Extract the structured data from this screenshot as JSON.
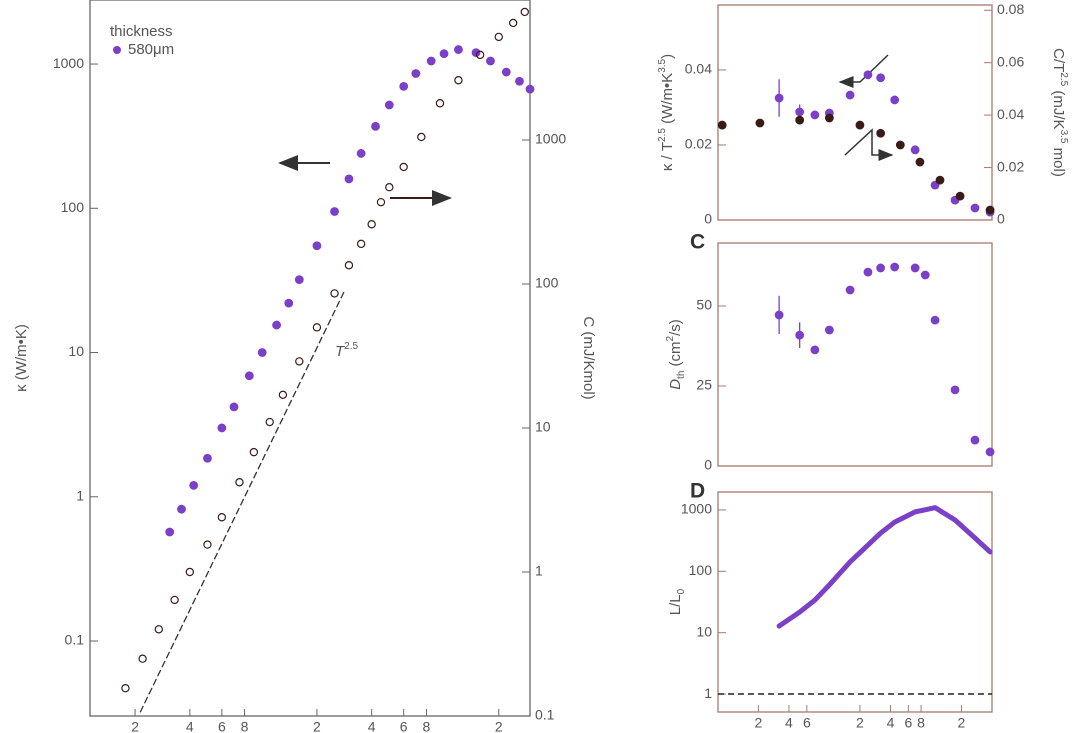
{
  "chart_data": [
    {
      "type": "scatter",
      "xlog": true,
      "ylog": true,
      "y2log": true,
      "xlim": [
        1.13,
        297
      ],
      "xticks": [
        2,
        4,
        6,
        8,
        {
          "value": 20,
          "label": "2"
        },
        {
          "value": 40,
          "label": "4"
        },
        {
          "value": 60,
          "label": "6"
        },
        {
          "value": 80,
          "label": "8"
        },
        {
          "value": 200,
          "label": "2"
        }
      ],
      "ylim": [
        0.0302,
        2780
      ],
      "yticks": [
        0.1,
        1,
        10,
        100,
        1000
      ],
      "ylabel": "κ (W/m•K)",
      "y2lim": [
        0.1,
        9380
      ],
      "y2ticks": [
        0.1,
        1,
        10,
        100,
        1000
      ],
      "y2label": "C (mJ/Kmol)",
      "legend": {
        "title": "thickness",
        "position": "upper-left"
      },
      "series": [
        {
          "name": "580μm",
          "color": "#7b3fc8",
          "marker": "filled",
          "x": [
            3.1,
            3.6,
            4.2,
            5,
            6,
            7,
            8.5,
            10,
            12,
            14,
            16,
            20,
            25,
            30,
            35,
            42,
            50,
            60,
            70,
            85,
            100,
            120,
            150,
            180,
            220,
            260,
            297
          ],
          "values": [
            0.57,
            0.82,
            1.2,
            1.85,
            3.0,
            4.2,
            6.9,
            10,
            15.5,
            22,
            32,
            55,
            95,
            160,
            240,
            370,
            520,
            700,
            860,
            1050,
            1180,
            1260,
            1200,
            1050,
            880,
            760,
            670
          ]
        },
        {
          "color": "#3a1c17",
          "marker": "open",
          "axis": "y2",
          "x": [
            1.77,
            2.2,
            2.7,
            3.3,
            4,
            5,
            6,
            7.5,
            9,
            11,
            13,
            16,
            20,
            25,
            30,
            35,
            40,
            45,
            50,
            60,
            75,
            95,
            120,
            158,
            200,
            240,
            278
          ],
          "values": [
            0.156,
            0.25,
            0.4,
            0.64,
            1.0,
            1.55,
            2.4,
            4.2,
            6.8,
            11,
            17,
            29,
            50,
            86,
            135,
            190,
            260,
            370,
            470,
            650,
            1050,
            1800,
            2600,
            3900,
            5200,
            6500,
            7750
          ]
        },
        {
          "color": "#333333",
          "style": "dashed",
          "axis": "y2",
          "x": [
            2.14,
            28.5
          ],
          "values": [
            0.107,
            90.8
          ]
        }
      ],
      "annotations": [
        [
          {
            "text": "T"
          },
          {
            "sup": "2.5"
          }
        ]
      ]
    },
    {
      "type": "scatter",
      "xlog": true,
      "xlim": [
        0.8,
        400
      ],
      "ylim": [
        0,
        0.0573
      ],
      "yticks": [
        0,
        0.02,
        0.04
      ],
      "ylabel": [
        {
          "text": "κ / T"
        },
        {
          "sup": "2.5"
        },
        {
          "text": " (W/m•K"
        },
        {
          "sup": "3.5"
        },
        {
          "text": ")"
        }
      ],
      "y2lim": [
        0,
        0.082
      ],
      "y2ticks": [
        0,
        0.02,
        0.04,
        0.06,
        0.08
      ],
      "y2label": [
        {
          "text": "C/T"
        },
        {
          "sup": "2.5"
        },
        {
          "text": " (mJ/K"
        },
        {
          "sup": "3.5"
        },
        {
          "text": " mol)"
        }
      ],
      "series": [
        {
          "color": "#7b3fc8",
          "marker": "filled",
          "x": [
            3.2,
            5.1,
            7.2,
            10,
            16,
            24,
            32,
            44,
            70,
            110,
            173,
            272,
            383
          ],
          "values": [
            0.0325,
            0.0288,
            0.028,
            0.0285,
            0.0333,
            0.0387,
            0.0379,
            0.032,
            0.0187,
            0.0093,
            0.0053,
            0.0032,
            0.0021
          ],
          "errors": [
            0.005,
            0.002,
            null,
            null,
            null,
            null,
            null,
            null,
            null,
            null,
            null,
            null,
            null
          ]
        },
        {
          "color": "#3a1c17",
          "marker": "filled",
          "axis": "y2",
          "x": [
            0.88,
            2.07,
            5.1,
            10,
            20,
            32,
            50,
            78,
            123,
            194,
            383
          ],
          "values": [
            0.0362,
            0.037,
            0.0381,
            0.0389,
            0.0362,
            0.0331,
            0.0286,
            0.0221,
            0.0152,
            0.0091,
            0.0038
          ]
        }
      ]
    },
    {
      "type": "scatter",
      "xlog": true,
      "xlim": [
        0.8,
        400
      ],
      "panel_label": "C",
      "ylim": [
        0,
        69.7
      ],
      "yticks": [
        0,
        25,
        50
      ],
      "ylabel": [
        {
          "text": "D"
        },
        {
          "sub": "th"
        },
        {
          "text": " (cm"
        },
        {
          "sup": "2"
        },
        {
          "text": "/s)"
        }
      ],
      "series": [
        {
          "color": "#7b3fc8",
          "marker": "filled",
          "x": [
            3.2,
            5.1,
            7.2,
            10,
            16,
            24,
            32,
            44,
            70,
            88,
            110,
            173,
            272,
            383
          ],
          "values": [
            47.2,
            40.9,
            36.3,
            42.5,
            55,
            60.6,
            61.9,
            62.2,
            61.9,
            59.7,
            45.6,
            23.8,
            8.1,
            4.4
          ],
          "errors": [
            6,
            4,
            null,
            null,
            null,
            null,
            null,
            null,
            null,
            null,
            null,
            null,
            null,
            null
          ]
        }
      ]
    },
    {
      "type": "line",
      "xlog": true,
      "ylog": true,
      "xlim": [
        0.8,
        400
      ],
      "panel_label": "D",
      "xticks": [
        2,
        4,
        6,
        {
          "value": 20,
          "label": "2"
        },
        {
          "value": 40,
          "label": "4"
        },
        {
          "value": 60,
          "label": "6"
        },
        {
          "value": 80,
          "label": "8"
        },
        {
          "value": 200,
          "label": "2"
        }
      ],
      "ylim": [
        0.51,
        1960
      ],
      "yticks": [
        1,
        10,
        100,
        1000
      ],
      "ylabel": [
        {
          "text": "L/L"
        },
        {
          "sub": "0"
        }
      ],
      "hline": 1,
      "series": [
        {
          "color": "#7b3fc8",
          "x": [
            3.2,
            5.1,
            7.2,
            10,
            16,
            24,
            32,
            44,
            70,
            110,
            173,
            272,
            383
          ],
          "values": [
            12.8,
            21.7,
            34,
            60,
            142,
            268,
            420,
            634,
            930,
            1090,
            685,
            349,
            207
          ]
        }
      ]
    }
  ]
}
